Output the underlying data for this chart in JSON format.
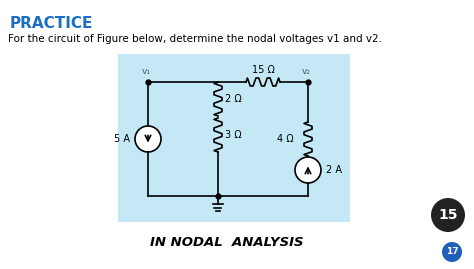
{
  "title": "PRACTICE",
  "subtitle": "For the circuit of Figure below, determine the nodal voltages v1 and v2.",
  "bottom_label": "IN NODAL  ANALYSIS",
  "title_color": "#1a6fc4",
  "subtitle_color": "#000000",
  "bg_color": "#ffffff",
  "circuit_bg": "#c5e8f7",
  "badge_number": "15",
  "badge2_number": "17",
  "node1": "v₁",
  "node2": "v₂",
  "res_top": "15 Ω",
  "res_mid": "2 Ω",
  "res_bot": "3 Ω",
  "res_right": "4 Ω",
  "cur_left": "5 A",
  "cur_right": "2 A",
  "fig_w": 4.74,
  "fig_h": 2.69,
  "dpi": 100
}
